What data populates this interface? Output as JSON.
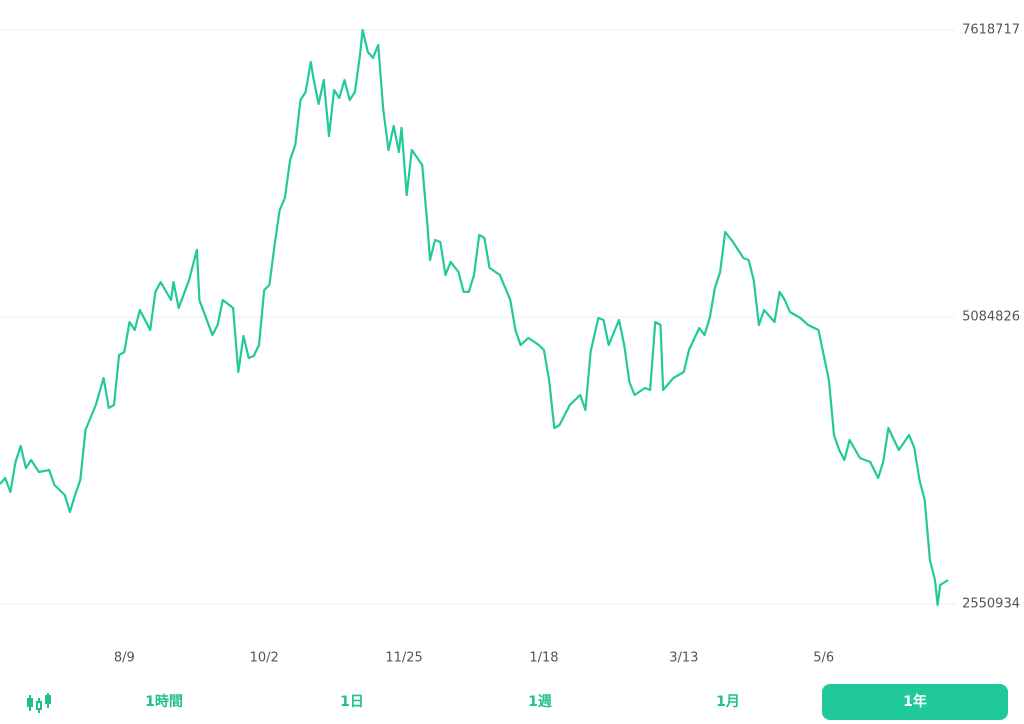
{
  "chart_data": {
    "type": "line",
    "color": "#22c99a",
    "grid": true,
    "x": [
      0,
      2,
      4,
      6,
      8,
      10,
      12,
      15,
      19,
      21,
      25,
      27,
      29,
      31,
      33,
      37,
      40,
      42,
      44,
      46,
      48,
      50,
      52,
      54,
      58,
      60,
      62,
      66,
      67,
      69,
      73,
      76,
      77,
      82,
      84,
      86,
      90,
      92,
      94,
      96,
      98,
      100,
      102,
      104,
      106,
      108,
      110,
      112,
      114,
      116,
      118,
      120,
      121,
      123,
      125,
      127,
      129,
      131,
      133,
      135,
      137,
      139,
      140,
      142,
      144,
      146,
      148,
      150,
      152,
      154,
      155,
      157,
      159,
      163,
      165,
      166,
      168,
      170,
      172,
      174,
      177,
      179,
      181,
      183,
      185,
      187,
      189,
      193,
      197,
      199,
      201,
      204,
      208,
      210,
      212,
      214,
      216,
      220,
      224,
      226,
      228,
      231,
      233,
      235,
      239,
      241,
      243,
      245,
      249,
      251,
      253,
      255,
      256,
      260,
      264,
      266,
      270,
      272,
      274,
      276,
      278,
      280,
      283,
      287,
      289,
      291,
      293,
      295,
      299,
      301,
      303,
      305,
      309,
      312,
      316,
      318,
      320,
      322,
      324,
      326,
      328,
      332,
      336,
      339,
      341,
      343,
      347,
      351,
      353,
      355,
      357,
      359,
      361,
      362,
      363,
      366
    ],
    "values": [
      3610000,
      3663000,
      3540000,
      3805000,
      3946000,
      3752000,
      3822000,
      3716000,
      3734000,
      3602000,
      3513000,
      3363000,
      3513000,
      3646000,
      4087000,
      4308000,
      4546000,
      4282000,
      4308000,
      4749000,
      4776000,
      5041000,
      4970000,
      5147000,
      4970000,
      5306000,
      5394000,
      5235000,
      5394000,
      5164000,
      5412000,
      5677000,
      5235000,
      4926000,
      5014000,
      5235000,
      5164000,
      4599000,
      4917000,
      4723000,
      4741000,
      4838000,
      5323000,
      5367000,
      5721000,
      6030000,
      6136000,
      6471000,
      6604000,
      7001000,
      7071000,
      7336000,
      7195000,
      6966000,
      7177000,
      6683000,
      7089000,
      7018000,
      7177000,
      7001000,
      7071000,
      7398000,
      7619000,
      7425000,
      7372000,
      7486000,
      6913000,
      6559000,
      6771000,
      6542000,
      6754000,
      6162000,
      6559000,
      6427000,
      5897000,
      5588000,
      5765000,
      5747000,
      5456000,
      5571000,
      5482000,
      5306000,
      5306000,
      5456000,
      5809000,
      5782000,
      5518000,
      5456000,
      5235000,
      4970000,
      4838000,
      4900000,
      4838000,
      4794000,
      4529000,
      4105000,
      4131000,
      4308000,
      4396000,
      4264000,
      4776000,
      5076000,
      5058000,
      4838000,
      5058000,
      4838000,
      4511000,
      4396000,
      4458000,
      4440000,
      5041000,
      5014000,
      4440000,
      4546000,
      4599000,
      4794000,
      4988000,
      4926000,
      5076000,
      5341000,
      5482000,
      5835000,
      5747000,
      5606000,
      5588000,
      5412000,
      5014000,
      5147000,
      5041000,
      5306000,
      5235000,
      5129000,
      5076000,
      5014000,
      4970000,
      4749000,
      4529000,
      4043000,
      3911000,
      3822000,
      3999000,
      3840000,
      3805000,
      3663000,
      3805000,
      4105000,
      3911000,
      4043000,
      3928000,
      3646000,
      3469000,
      2939000,
      2763000,
      2542000,
      2719000,
      2763000
    ],
    "xlim": [
      0,
      366
    ],
    "xticks": [
      {
        "value": 48,
        "label": "8/9"
      },
      {
        "value": 102,
        "label": "10/2"
      },
      {
        "value": 156,
        "label": "11/25"
      },
      {
        "value": 210,
        "label": "1/18"
      },
      {
        "value": 264,
        "label": "3/13"
      },
      {
        "value": 318,
        "label": "5/6"
      }
    ],
    "ylim": [
      2550934,
      7618717
    ],
    "yticks": [
      2550934,
      5084826,
      7618717
    ]
  },
  "tabs": [
    "1時間",
    "1日",
    "1週",
    "1月",
    "1年"
  ]
}
